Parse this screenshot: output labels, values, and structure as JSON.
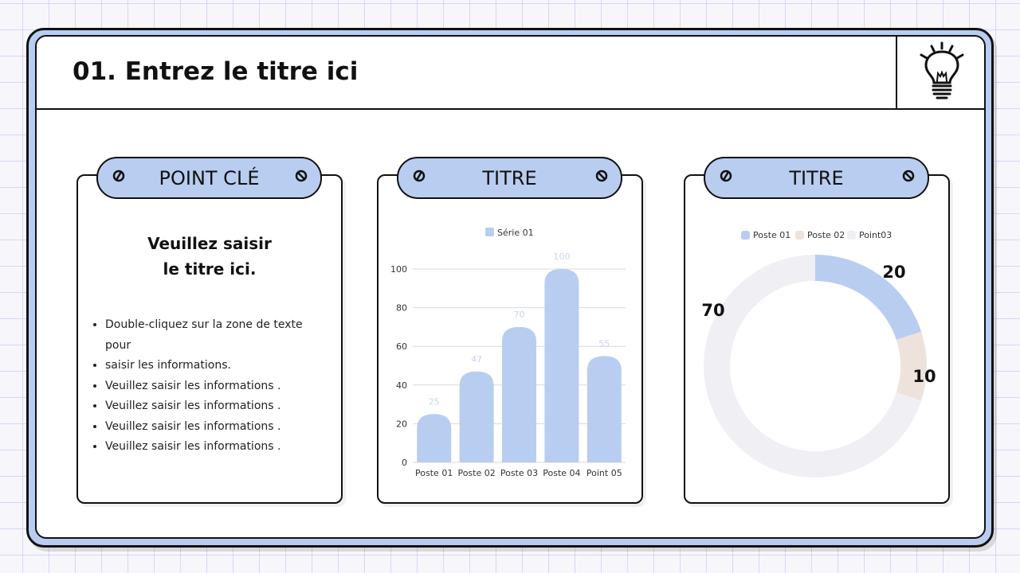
{
  "header": {
    "title": "01. Entrez le titre ici"
  },
  "card1": {
    "tab": "POINT CLÉ",
    "subtitle_line1": "Veuillez saisir",
    "subtitle_line2": "le titre ici.",
    "bullets": [
      "Double-cliquez sur la zone de texte pour",
      "saisir les informations.",
      "Veuillez saisir les informations .",
      "Veuillez saisir les informations .",
      "Veuillez saisir les informations .",
      "Veuillez saisir les informations ."
    ]
  },
  "card2": {
    "tab": "TITRE"
  },
  "card3": {
    "tab": "TITRE"
  },
  "chart_data": [
    {
      "type": "bar",
      "categories": [
        "Poste 01",
        "Poste 02",
        "Poste 03",
        "Poste 04",
        "Point 05"
      ],
      "series": [
        {
          "name": "Série 01",
          "values": [
            25,
            47,
            70,
            100,
            55
          ],
          "color": "#b9cdf0"
        }
      ],
      "yticks": [
        0,
        20,
        40,
        60,
        80,
        100
      ],
      "ylim": [
        0,
        100
      ],
      "grid": true,
      "legend": "top"
    },
    {
      "type": "pie",
      "donut": true,
      "labels": [
        "Poste 01",
        "Poste 02",
        "Point03"
      ],
      "values": [
        20,
        10,
        70
      ],
      "colors": [
        "#b9cdf0",
        "#ede3dc",
        "#f0eff3"
      ],
      "legend": "top"
    }
  ],
  "icons": [
    "lightbulb-icon",
    "screw-icon"
  ]
}
